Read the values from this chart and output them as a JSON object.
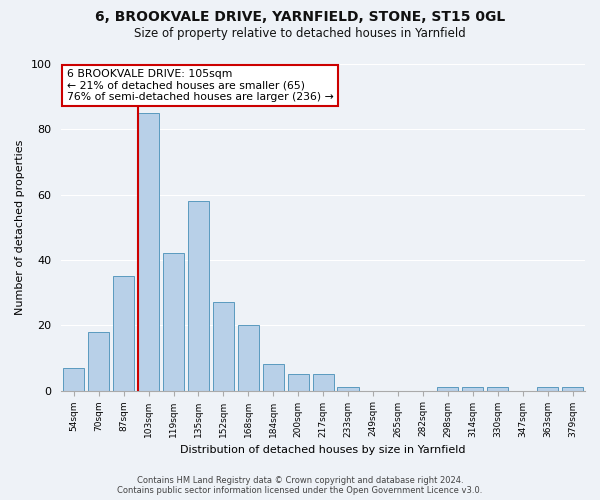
{
  "title1": "6, BROOKVALE DRIVE, YARNFIELD, STONE, ST15 0GL",
  "title2": "Size of property relative to detached houses in Yarnfield",
  "xlabel": "Distribution of detached houses by size in Yarnfield",
  "ylabel": "Number of detached properties",
  "bar_labels": [
    "54sqm",
    "70sqm",
    "87sqm",
    "103sqm",
    "119sqm",
    "135sqm",
    "152sqm",
    "168sqm",
    "184sqm",
    "200sqm",
    "217sqm",
    "233sqm",
    "249sqm",
    "265sqm",
    "282sqm",
    "298sqm",
    "314sqm",
    "330sqm",
    "347sqm",
    "363sqm",
    "379sqm"
  ],
  "bar_values": [
    7,
    18,
    35,
    85,
    42,
    58,
    27,
    20,
    8,
    5,
    5,
    1,
    0,
    0,
    0,
    1,
    1,
    1,
    0,
    1,
    1
  ],
  "bar_color": "#b8d0e8",
  "bar_edge_color": "#5a9abf",
  "vline_index": 3,
  "vline_color": "#cc0000",
  "annotation_title": "6 BROOKVALE DRIVE: 105sqm",
  "annotation_line1": "← 21% of detached houses are smaller (65)",
  "annotation_line2": "76% of semi-detached houses are larger (236) →",
  "annotation_box_color": "#ffffff",
  "annotation_box_edge": "#cc0000",
  "footnote1": "Contains HM Land Registry data © Crown copyright and database right 2024.",
  "footnote2": "Contains public sector information licensed under the Open Government Licence v3.0.",
  "ylim": [
    0,
    100
  ],
  "yticks": [
    0,
    20,
    40,
    60,
    80,
    100
  ],
  "background_color": "#eef2f7"
}
